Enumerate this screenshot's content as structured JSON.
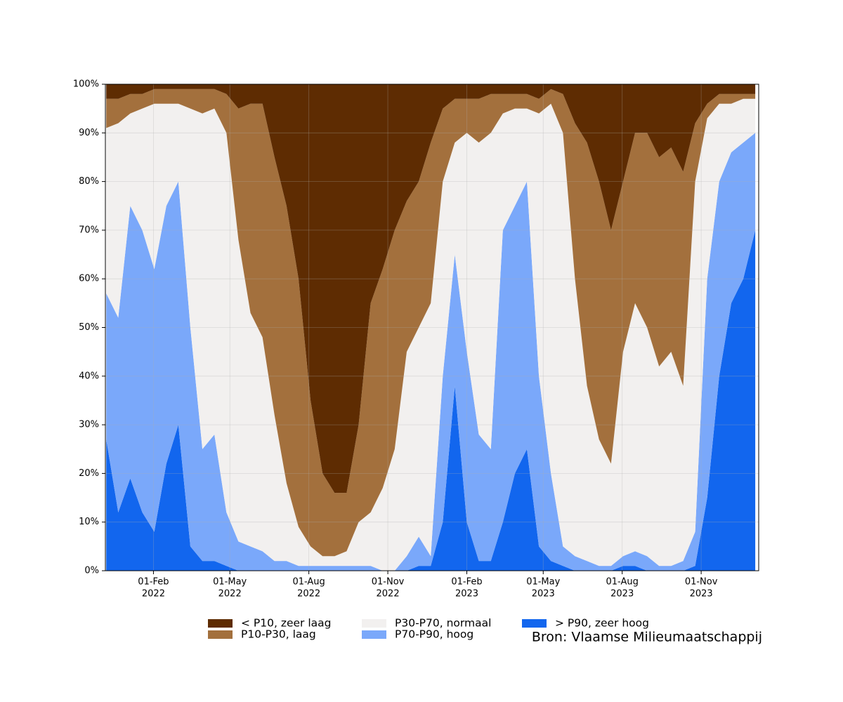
{
  "chart_data": {
    "type": "stacked_area",
    "source": "Bron: Vlaamse Milieumaatschappij",
    "x": [
      "2021-12-08",
      "2021-12-22",
      "2022-01-05",
      "2022-01-19",
      "2022-02-02",
      "2022-02-16",
      "2022-03-02",
      "2022-03-16",
      "2022-03-30",
      "2022-04-13",
      "2022-04-27",
      "2022-05-11",
      "2022-05-25",
      "2022-06-08",
      "2022-06-22",
      "2022-07-06",
      "2022-07-20",
      "2022-08-03",
      "2022-08-17",
      "2022-08-31",
      "2022-09-14",
      "2022-09-28",
      "2022-10-12",
      "2022-10-26",
      "2022-11-09",
      "2022-11-23",
      "2022-12-07",
      "2022-12-21",
      "2023-01-04",
      "2023-01-18",
      "2023-02-01",
      "2023-02-15",
      "2023-03-01",
      "2023-03-15",
      "2023-03-29",
      "2023-04-12",
      "2023-04-26",
      "2023-05-10",
      "2023-05-24",
      "2023-06-07",
      "2023-06-21",
      "2023-07-05",
      "2023-07-19",
      "2023-08-02",
      "2023-08-16",
      "2023-08-30",
      "2023-09-13",
      "2023-09-27",
      "2023-10-11",
      "2023-10-25",
      "2023-11-08",
      "2023-11-22",
      "2023-12-06",
      "2023-12-20",
      "2024-01-03"
    ],
    "series": [
      {
        "name": "< P10, zeer laag",
        "color": "#5e2c02",
        "values": [
          3,
          3,
          2,
          2,
          1,
          1,
          1,
          1,
          1,
          1,
          2,
          5,
          4,
          4,
          15,
          25,
          40,
          65,
          80,
          84,
          84,
          70,
          45,
          38,
          30,
          24,
          20,
          12,
          5,
          3,
          3,
          3,
          2,
          2,
          2,
          2,
          3,
          1,
          2,
          8,
          12,
          20,
          30,
          20,
          10,
          10,
          15,
          13,
          18,
          8,
          4,
          2,
          2,
          2,
          2
        ]
      },
      {
        "name": "P10-P30, laag",
        "color": "#a3703d",
        "values": [
          6,
          5,
          4,
          3,
          3,
          3,
          3,
          4,
          5,
          4,
          8,
          27,
          43,
          48,
          53,
          57,
          51,
          30,
          17,
          13,
          12,
          20,
          43,
          45,
          45,
          31,
          30,
          33,
          15,
          9,
          7,
          9,
          8,
          4,
          3,
          3,
          3,
          3,
          8,
          32,
          50,
          53,
          48,
          35,
          35,
          40,
          43,
          42,
          44,
          12,
          3,
          2,
          2,
          1,
          1
        ]
      },
      {
        "name": "P30-P70, normaal",
        "color": "#f2f0ef",
        "values": [
          34,
          40,
          19,
          25,
          34,
          21,
          16,
          45,
          69,
          67,
          78,
          62,
          48,
          44,
          30,
          16,
          8,
          4,
          2,
          2,
          3,
          9,
          11,
          17,
          25,
          42,
          43,
          52,
          40,
          23,
          45,
          60,
          65,
          24,
          20,
          15,
          54,
          76,
          85,
          57,
          36,
          26,
          21,
          42,
          51,
          47,
          41,
          44,
          36,
          72,
          33,
          16,
          10,
          9,
          7
        ]
      },
      {
        "name": "P70-P90, hoog",
        "color": "#7aa8fa",
        "values": [
          30,
          40,
          56,
          58,
          54,
          53,
          50,
          45,
          23,
          26,
          11,
          6,
          5,
          4,
          2,
          2,
          1,
          1,
          1,
          1,
          1,
          1,
          1,
          0,
          0,
          3,
          6,
          2,
          30,
          27,
          35,
          26,
          23,
          60,
          55,
          55,
          35,
          18,
          4,
          3,
          2,
          1,
          1,
          2,
          3,
          3,
          1,
          1,
          2,
          7,
          45,
          40,
          31,
          28,
          20
        ]
      },
      {
        "name": "> P90, zeer hoog",
        "color": "#1266ee",
        "values": [
          27,
          12,
          19,
          12,
          8,
          22,
          30,
          5,
          2,
          2,
          1,
          0,
          0,
          0,
          0,
          0,
          0,
          0,
          0,
          0,
          0,
          0,
          0,
          0,
          0,
          0,
          1,
          1,
          10,
          38,
          10,
          2,
          2,
          10,
          20,
          25,
          5,
          2,
          1,
          0,
          0,
          0,
          0,
          1,
          1,
          0,
          0,
          0,
          0,
          1,
          15,
          40,
          55,
          60,
          70
        ]
      }
    ],
    "xlim": [
      "2021-12-07",
      "2024-01-07"
    ],
    "xticks": [
      {
        "value": "2022-02-01",
        "label": [
          "01-Feb",
          "2022"
        ]
      },
      {
        "value": "2022-05-01",
        "label": [
          "01-May",
          "2022"
        ]
      },
      {
        "value": "2022-08-01",
        "label": [
          "01-Aug",
          "2022"
        ]
      },
      {
        "value": "2022-11-01",
        "label": [
          "01-Nov",
          "2022"
        ]
      },
      {
        "value": "2023-02-01",
        "label": [
          "01-Feb",
          "2023"
        ]
      },
      {
        "value": "2023-05-01",
        "label": [
          "01-May",
          "2023"
        ]
      },
      {
        "value": "2023-08-01",
        "label": [
          "01-Aug",
          "2023"
        ]
      },
      {
        "value": "2023-11-01",
        "label": [
          "01-Nov",
          "2023"
        ]
      }
    ],
    "ylim": [
      0,
      100
    ],
    "yticks": [
      {
        "value": 0,
        "label": "0%"
      },
      {
        "value": 10,
        "label": "10%"
      },
      {
        "value": 20,
        "label": "20%"
      },
      {
        "value": 30,
        "label": "30%"
      },
      {
        "value": 40,
        "label": "40%"
      },
      {
        "value": 50,
        "label": "50%"
      },
      {
        "value": 60,
        "label": "60%"
      },
      {
        "value": 70,
        "label": "70%"
      },
      {
        "value": 80,
        "label": "80%"
      },
      {
        "value": 90,
        "label": "90%"
      },
      {
        "value": 100,
        "label": "100%"
      }
    ],
    "grid": true
  }
}
